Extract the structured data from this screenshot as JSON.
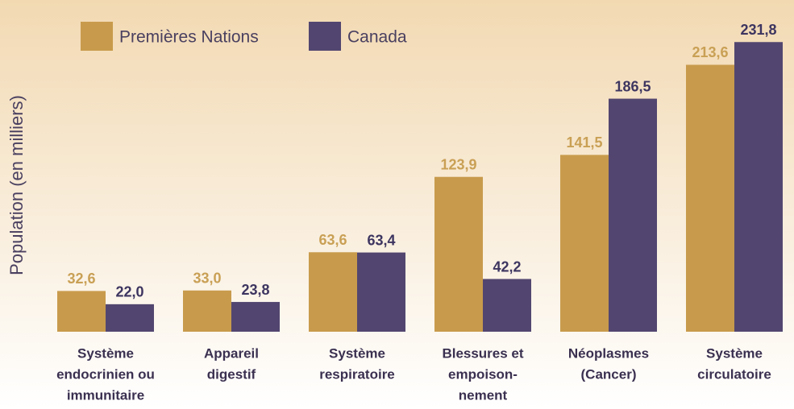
{
  "chart_data": {
    "type": "bar",
    "y_label": "Population (en milliers)",
    "categories": [
      [
        "Système",
        "endocrinien ou",
        "immunitaire"
      ],
      [
        "Appareil",
        "digestif"
      ],
      [
        "Système",
        "respiratoire"
      ],
      [
        "Blessures et",
        "empoison-",
        "nement"
      ],
      [
        "Néoplasmes",
        "(Cancer)"
      ],
      [
        "Système",
        "circulatoire"
      ]
    ],
    "series": [
      {
        "name": "Premières Nations",
        "color": "#c89b4c",
        "label_color": "#c9a055",
        "values": [
          32.6,
          33.0,
          63.6,
          123.9,
          141.5,
          213.6
        ],
        "value_labels": [
          "32,6",
          "33,0",
          "63,6",
          "123,9",
          "141,5",
          "213,6"
        ]
      },
      {
        "name": "Canada",
        "color": "#524670",
        "label_color": "#3d3560",
        "values": [
          22.0,
          23.8,
          63.4,
          42.2,
          186.5,
          231.8
        ],
        "value_labels": [
          "22,0",
          "23,8",
          "63,4",
          "42,2",
          "186,5",
          "231,8"
        ]
      }
    ],
    "ylim": [
      0,
      250
    ]
  }
}
